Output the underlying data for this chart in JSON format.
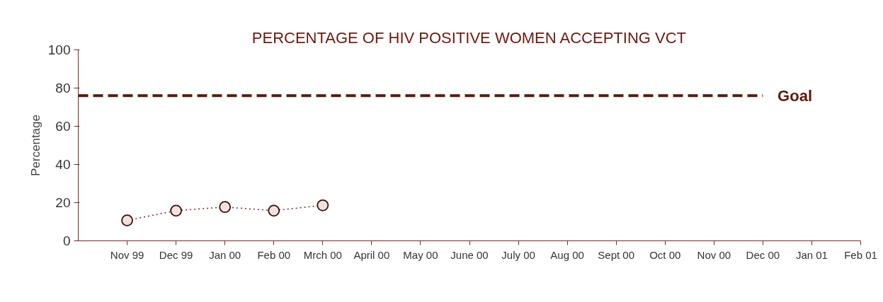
{
  "chart_data": {
    "type": "line",
    "title": "PERCENTAGE OF HIV POSITIVE WOMEN ACCEPTING VCT",
    "ylabel": "Percentage",
    "categories": [
      "Nov 99",
      "Dec 99",
      "Jan 00",
      "Feb 00",
      "Mrch 00",
      "April 00",
      "May 00",
      "June 00",
      "July 00",
      "Aug 00",
      "Sept 00",
      "Oct 00",
      "Nov 00",
      "Dec 00",
      "Jan 01",
      "Feb 01"
    ],
    "series": [
      {
        "color": "#7a2a1a",
        "values": [
          10.7,
          15.8,
          17.7,
          15.8,
          18.6,
          null,
          null,
          null,
          null,
          null,
          null,
          null,
          null,
          null,
          null,
          null
        ]
      }
    ],
    "ylim": [
      0,
      100
    ],
    "yticks": [
      0,
      20,
      40,
      60,
      80,
      100
    ],
    "grid": false,
    "marker": "circle",
    "line_style": "dotted",
    "ref_lines": [
      {
        "axis": "y",
        "value": 76,
        "label": "Goal",
        "color": "#5c1a0a",
        "line_style": "dashed"
      }
    ]
  }
}
